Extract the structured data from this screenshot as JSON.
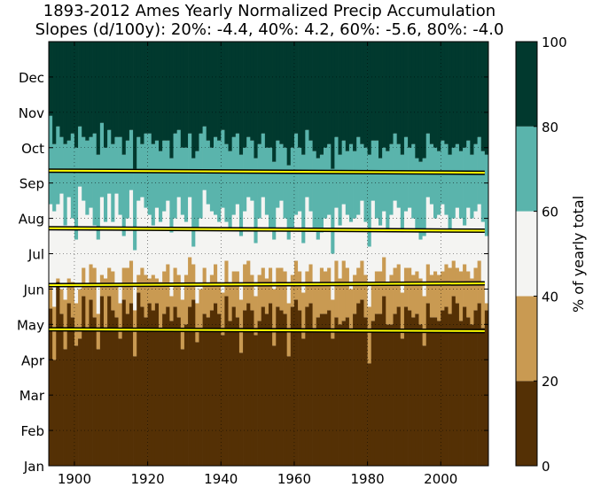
{
  "chart_data": {
    "type": "bar",
    "title_line1": "1893-2012 Ames Yearly Normalized Precip Accumulation",
    "title_line2": "Slopes (d/100y): 20%: -4.4, 40%: 4.2, 60%: -5.6, 80%: -4.0",
    "x_range": [
      1893,
      2013
    ],
    "x_ticks": [
      1900,
      1920,
      1940,
      1960,
      1980,
      2000
    ],
    "y_tick_labels": [
      "Jan",
      "Feb",
      "Mar",
      "Apr",
      "May",
      "Jun",
      "Jul",
      "Aug",
      "Sep",
      "Oct",
      "Nov",
      "Dec"
    ],
    "y_range": [
      0,
      12
    ],
    "grid": true,
    "bands": [
      {
        "level": "0-20%",
        "color": "#543005"
      },
      {
        "level": "20-40%",
        "color": "#c99a52"
      },
      {
        "level": "40-60%",
        "color": "#f4f4f2"
      },
      {
        "level": "60-80%",
        "color": "#5ab4ac"
      },
      {
        "level": "80-100%",
        "color": "#01392e"
      }
    ],
    "threshold_months": {
      "p20": [
        4.45,
        3.0,
        5.2,
        4.3,
        3.3,
        4.6,
        4.2,
        3.4,
        3.6,
        4.8,
        3.9,
        4.7,
        4.2,
        3.3,
        4.8,
        3.8,
        4.8,
        4.4,
        4.2,
        3.6,
        4.7,
        4.3,
        4.6,
        3.1,
        4.9,
        4.5,
        4.2,
        4.6,
        4.4,
        4.6,
        3.8,
        4.3,
        4.5,
        4.1,
        4.5,
        4.2,
        3.3,
        4.0,
        4.5,
        4.7,
        3.5,
        3.8,
        4.3,
        4.2,
        4.4,
        4.6,
        4.3,
        3.7,
        4.8,
        4.1,
        4.5,
        4.2,
        3.2,
        4.4,
        4.6,
        4.4,
        3.7,
        4.1,
        4.5,
        4.3,
        4.6,
        3.4,
        4.5,
        4.4,
        4.3,
        3.1,
        4.5,
        4.7,
        4.4,
        3.6,
        4.5,
        4.6,
        3.9,
        4.2,
        4.3,
        4.3,
        4.4,
        3.6,
        4.2,
        4.0,
        4.1,
        4.2,
        3.8,
        4.3,
        4.6,
        4.7,
        4.2,
        2.9,
        4.1,
        4.3,
        4.3,
        4.8,
        4.0,
        4.0,
        4.3,
        4.5,
        3.6,
        4.5,
        4.4,
        4.2,
        4.3,
        4.0,
        3.4,
        4.6,
        4.2,
        4.2,
        4.1,
        4.4,
        4.5,
        4.3,
        4.8,
        4.6,
        4.1,
        4.5,
        4.2,
        4.0,
        4.4,
        4.6,
        3.9,
        4.4
      ],
      "p40": [
        5.1,
        4.5,
        5.3,
        5.0,
        4.7,
        5.3,
        5.2,
        4.6,
        5.0,
        5.6,
        5.1,
        5.7,
        5.6,
        4.3,
        5.4,
        5.3,
        5.6,
        5.5,
        5.1,
        4.6,
        5.6,
        5.6,
        5.8,
        4.4,
        5.4,
        5.6,
        5.4,
        5.3,
        5.4,
        5.3,
        5.2,
        5.5,
        5.7,
        4.8,
        5.6,
        5.4,
        4.7,
        5.4,
        5.9,
        5.7,
        4.6,
        5.0,
        5.6,
        5.1,
        5.4,
        5.7,
        5.2,
        4.9,
        5.8,
        5.2,
        5.5,
        5.5,
        4.7,
        5.7,
        5.8,
        5.4,
        4.8,
        5.4,
        5.6,
        5.3,
        5.6,
        5.0,
        5.6,
        5.6,
        5.5,
        4.6,
        5.4,
        5.8,
        5.5,
        4.9,
        5.5,
        5.7,
        5.1,
        5.2,
        5.6,
        5.5,
        5.6,
        4.7,
        5.8,
        5.3,
        5.8,
        5.6,
        5.0,
        5.4,
        5.6,
        5.8,
        5.4,
        4.5,
        5.2,
        5.5,
        5.5,
        5.9,
        5.2,
        5.4,
        5.6,
        5.7,
        4.9,
        5.6,
        5.6,
        5.4,
        5.5,
        5.3,
        4.8,
        5.7,
        5.4,
        5.5,
        5.4,
        5.5,
        5.7,
        5.6,
        5.8,
        5.6,
        5.5,
        5.7,
        5.5,
        5.3,
        5.6,
        5.8,
        5.2,
        4.6
      ],
      "p60": [
        7.4,
        7.2,
        7.4,
        7.7,
        6.8,
        7.6,
        7.0,
        6.4,
        7.9,
        7.5,
        7.1,
        7.3,
        6.8,
        6.4,
        7.6,
        6.9,
        7.7,
        6.9,
        7.7,
        7.1,
        6.5,
        7.0,
        7.8,
        6.1,
        7.5,
        7.6,
        7.3,
        7.1,
        6.8,
        7.3,
        6.9,
        7.2,
        7.5,
        6.6,
        7.0,
        7.6,
        7.1,
        6.9,
        7.6,
        6.2,
        6.7,
        7.0,
        7.8,
        7.4,
        7.2,
        7.1,
        6.9,
        7.3,
        6.9,
        6.7,
        7.1,
        7.4,
        6.5,
        7.2,
        7.6,
        7.5,
        6.3,
        7.0,
        7.6,
        7.1,
        6.7,
        6.4,
        7.3,
        7.5,
        7.0,
        6.4,
        6.7,
        7.1,
        7.2,
        6.3,
        7.6,
        7.2,
        6.7,
        6.4,
        6.6,
        7.0,
        7.1,
        6.0,
        7.3,
        6.8,
        7.4,
        7.1,
        6.9,
        7.0,
        7.1,
        7.5,
        6.9,
        6.2,
        7.5,
        7.0,
        6.8,
        7.2,
        6.7,
        7.1,
        7.5,
        7.3,
        6.6,
        7.2,
        7.3,
        7.0,
        6.6,
        6.4,
        6.5,
        7.6,
        7.4,
        7.0,
        7.1,
        7.4,
        7.1,
        6.7,
        7.0,
        7.3,
        7.0,
        6.8,
        7.3,
        7.0,
        7.2,
        7.4,
        6.9,
        6.5
      ],
      "p80": [
        9.9,
        9.1,
        9.6,
        9.3,
        9.1,
        9.2,
        9.4,
        9.0,
        9.6,
        9.3,
        9.2,
        9.3,
        9.4,
        8.8,
        9.7,
        9.0,
        9.5,
        9.1,
        9.3,
        9.3,
        8.8,
        9.2,
        9.5,
        8.4,
        9.3,
        9.1,
        9.4,
        9.4,
        9.1,
        9.2,
        8.9,
        9.2,
        9.2,
        8.7,
        9.4,
        9.5,
        9.0,
        9.0,
        9.4,
        8.7,
        8.9,
        9.4,
        9.6,
        9.2,
        9.0,
        9.3,
        9.2,
        9.5,
        9.1,
        8.9,
        9.3,
        9.4,
        8.8,
        9.0,
        9.3,
        9.2,
        8.7,
        9.1,
        9.4,
        9.0,
        9.0,
        8.6,
        9.2,
        9.1,
        9.0,
        8.5,
        9.0,
        9.4,
        9.0,
        8.8,
        9.5,
        9.2,
        8.9,
        8.7,
        8.8,
        9.0,
        9.1,
        8.4,
        9.3,
        8.8,
        9.2,
        8.9,
        9.1,
        8.9,
        9.3,
        9.1,
        9.0,
        8.8,
        9.2,
        9.2,
        8.7,
        9.0,
        8.9,
        9.1,
        9.4,
        9.1,
        8.8,
        9.3,
        9.0,
        9.1,
        8.7,
        8.6,
        8.7,
        9.4,
        9.1,
        9.0,
        8.9,
        9.2,
        9.1,
        8.8,
        9.0,
        9.1,
        8.9,
        9.0,
        9.2,
        8.8,
        9.1,
        9.3,
        8.9,
        8.8
      ]
    },
    "trend_lines": [
      {
        "name": "20%",
        "start": [
          1893,
          3.86
        ],
        "end": [
          2012,
          3.81
        ]
      },
      {
        "name": "40%",
        "start": [
          1893,
          5.11
        ],
        "end": [
          2012,
          5.16
        ]
      },
      {
        "name": "60%",
        "start": [
          1893,
          6.72
        ],
        "end": [
          2012,
          6.65
        ]
      },
      {
        "name": "80%",
        "start": [
          1893,
          8.35
        ],
        "end": [
          2012,
          8.29
        ]
      }
    ],
    "colorbar": {
      "label": "% of yearly total",
      "ticks": [
        "0",
        "20",
        "40",
        "60",
        "80",
        "100"
      ]
    }
  }
}
